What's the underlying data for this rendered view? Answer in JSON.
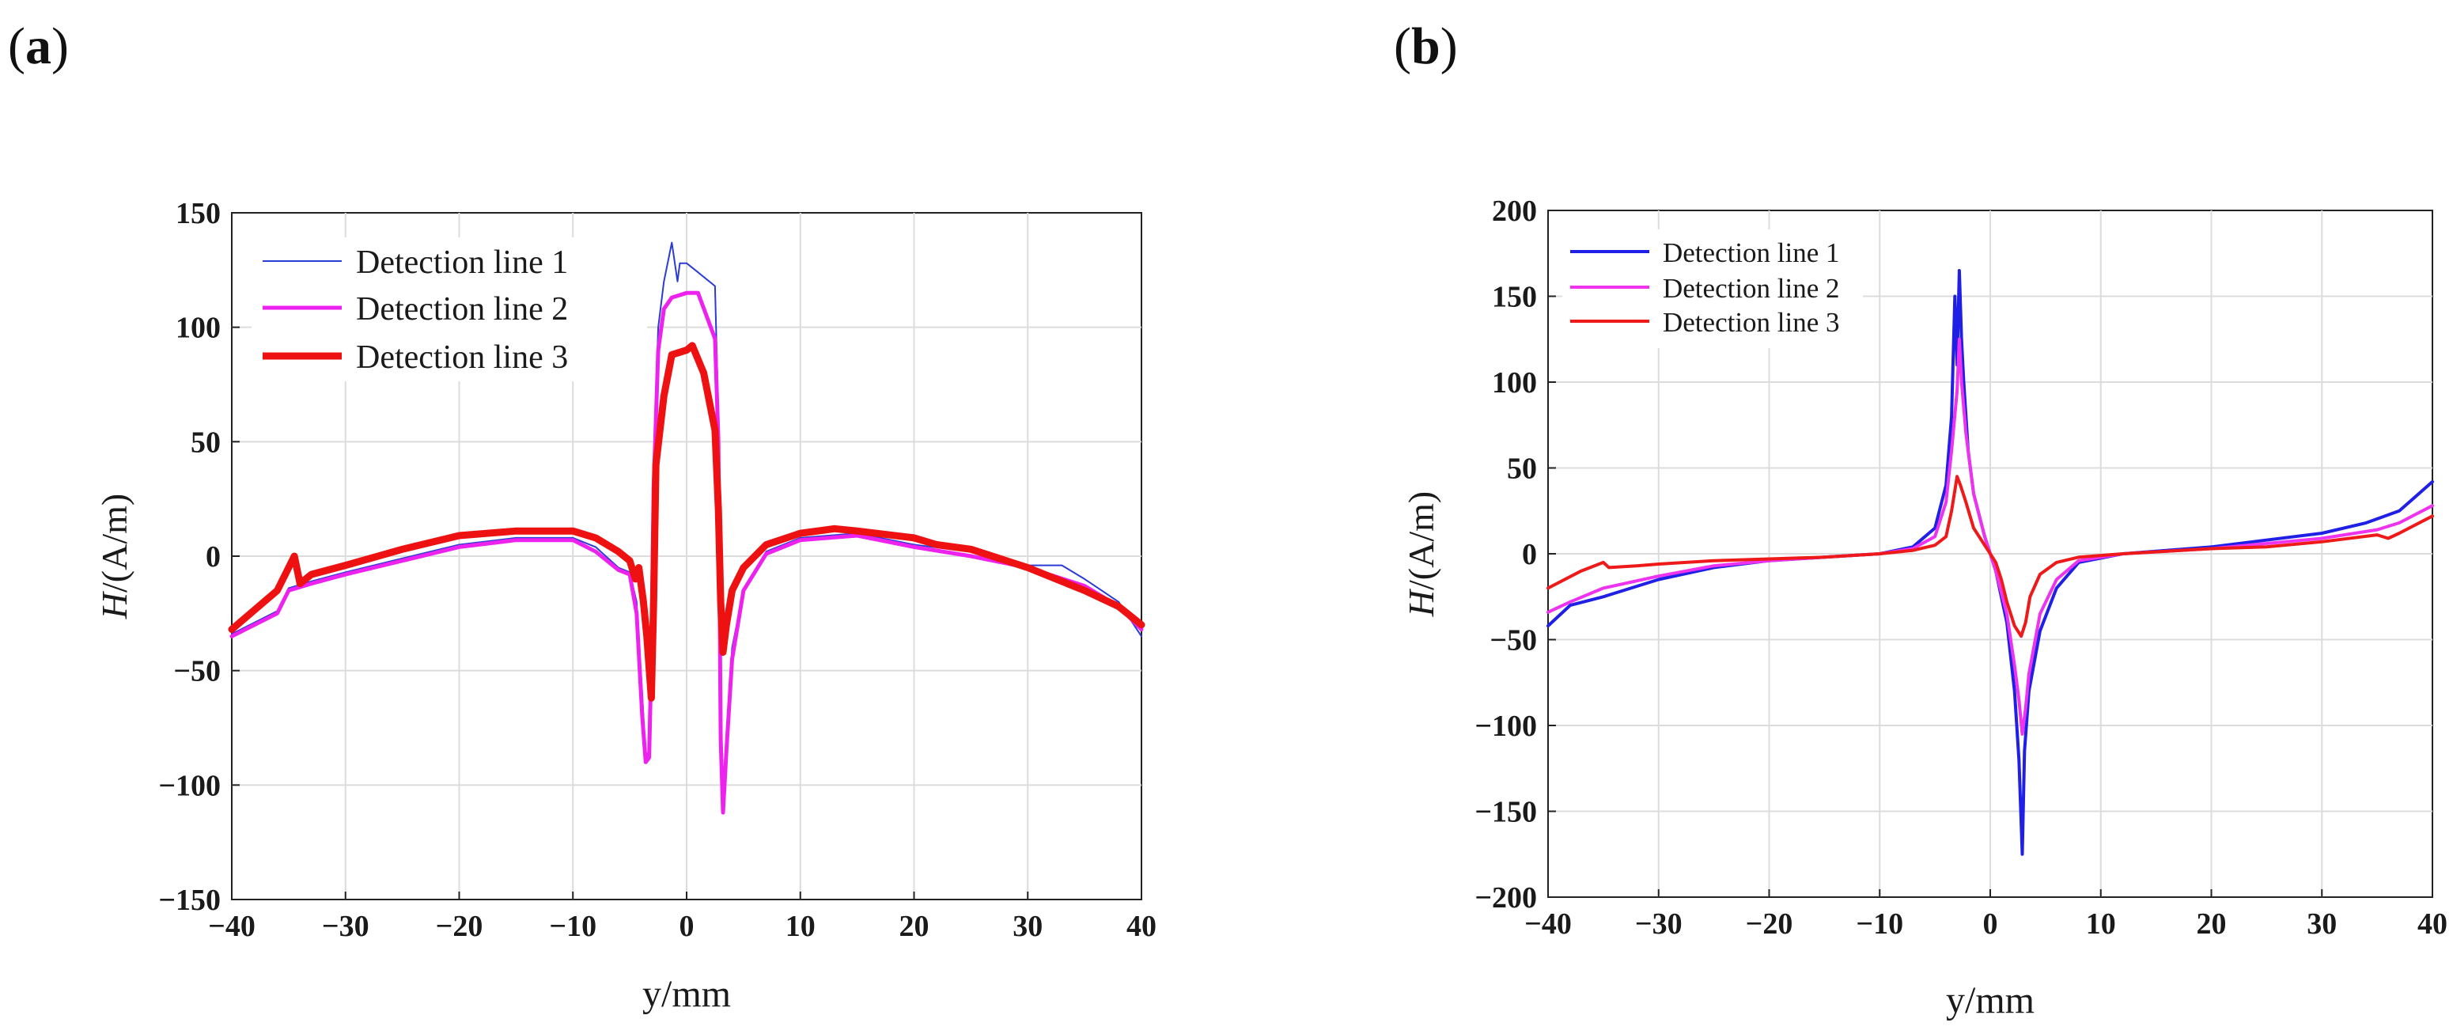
{
  "panels": {
    "a": {
      "label_open": "(",
      "label_letter": "a",
      "label_close": ")"
    },
    "b": {
      "label_open": "(",
      "label_letter": "b",
      "label_close": ")"
    }
  },
  "chart_data": [
    {
      "id": "a",
      "type": "line",
      "title": "",
      "xlabel": "y/mm",
      "ylabel_italic": "H",
      "ylabel_rest": "/(A/m)",
      "xlim": [
        -40,
        40
      ],
      "ylim": [
        -150,
        150
      ],
      "xticks": [
        -40,
        -30,
        -20,
        -10,
        0,
        10,
        20,
        30,
        40
      ],
      "yticks": [
        -150,
        -100,
        -50,
        0,
        50,
        100,
        150
      ],
      "xtick_labels": [
        "−40",
        "−30",
        "−20",
        "−10",
        "0",
        "10",
        "20",
        "30",
        "40"
      ],
      "ytick_labels": [
        "−150",
        "−100",
        "−50",
        "0",
        "50",
        "100",
        "150"
      ],
      "grid": true,
      "legend_position": "top-left",
      "series": [
        {
          "name": "Detection line 1",
          "color": "#2b3bd6",
          "width": 2,
          "points": [
            [
              -40,
              -34
            ],
            [
              -36,
              -24
            ],
            [
              -35,
              -14
            ],
            [
              -33,
              -11
            ],
            [
              -30,
              -7
            ],
            [
              -25,
              -1
            ],
            [
              -20,
              5
            ],
            [
              -15,
              8
            ],
            [
              -10,
              8
            ],
            [
              -8,
              4
            ],
            [
              -6,
              -5
            ],
            [
              -5,
              -7
            ],
            [
              -4.4,
              -20
            ],
            [
              -3.9,
              -60
            ],
            [
              -3.6,
              -88
            ],
            [
              -3.3,
              -85
            ],
            [
              -3.1,
              -40
            ],
            [
              -2.9,
              40
            ],
            [
              -2.5,
              100
            ],
            [
              -2,
              120
            ],
            [
              -1.3,
              137
            ],
            [
              -0.8,
              120
            ],
            [
              -0.6,
              128
            ],
            [
              0,
              128
            ],
            [
              1,
              124
            ],
            [
              2.5,
              118
            ],
            [
              2.8,
              60
            ],
            [
              3.0,
              -80
            ],
            [
              3.2,
              -110
            ],
            [
              3.5,
              -85
            ],
            [
              4,
              -40
            ],
            [
              5,
              -15
            ],
            [
              7,
              2
            ],
            [
              10,
              8
            ],
            [
              15,
              10
            ],
            [
              20,
              5
            ],
            [
              25,
              2
            ],
            [
              30,
              -4
            ],
            [
              33,
              -4
            ],
            [
              35,
              -10
            ],
            [
              38,
              -20
            ],
            [
              40,
              -35
            ]
          ]
        },
        {
          "name": "Detection line 2",
          "color": "#ee22ee",
          "width": 5,
          "points": [
            [
              -40,
              -35
            ],
            [
              -36,
              -25
            ],
            [
              -35,
              -15
            ],
            [
              -33,
              -12
            ],
            [
              -30,
              -8
            ],
            [
              -25,
              -2
            ],
            [
              -20,
              4
            ],
            [
              -15,
              7
            ],
            [
              -10,
              7
            ],
            [
              -8,
              2
            ],
            [
              -6,
              -6
            ],
            [
              -5,
              -8
            ],
            [
              -4.4,
              -25
            ],
            [
              -3.9,
              -70
            ],
            [
              -3.6,
              -90
            ],
            [
              -3.3,
              -88
            ],
            [
              -3.1,
              -45
            ],
            [
              -2.9,
              30
            ],
            [
              -2.5,
              90
            ],
            [
              -2,
              108
            ],
            [
              -1.3,
              113
            ],
            [
              0,
              115
            ],
            [
              1,
              115
            ],
            [
              2.5,
              95
            ],
            [
              2.8,
              50
            ],
            [
              3.0,
              -80
            ],
            [
              3.2,
              -112
            ],
            [
              3.5,
              -85
            ],
            [
              4,
              -45
            ],
            [
              5,
              -15
            ],
            [
              7,
              1
            ],
            [
              10,
              7
            ],
            [
              15,
              9
            ],
            [
              20,
              4
            ],
            [
              25,
              0
            ],
            [
              30,
              -5
            ],
            [
              35,
              -13
            ],
            [
              38,
              -22
            ],
            [
              40,
              -32
            ]
          ]
        },
        {
          "name": "Detection line 3",
          "color": "#ee1111",
          "width": 9,
          "points": [
            [
              -40,
              -32
            ],
            [
              -36,
              -15
            ],
            [
              -35,
              -5
            ],
            [
              -34.5,
              0
            ],
            [
              -34,
              -12
            ],
            [
              -33,
              -8
            ],
            [
              -30,
              -4
            ],
            [
              -25,
              3
            ],
            [
              -20,
              9
            ],
            [
              -15,
              11
            ],
            [
              -10,
              11
            ],
            [
              -8,
              8
            ],
            [
              -6,
              2
            ],
            [
              -5,
              -2
            ],
            [
              -4.5,
              -10
            ],
            [
              -4.2,
              -5
            ],
            [
              -3.8,
              -20
            ],
            [
              -3.5,
              -35
            ],
            [
              -3.1,
              -62
            ],
            [
              -2.9,
              -20
            ],
            [
              -2.7,
              40
            ],
            [
              -2,
              70
            ],
            [
              -1.3,
              88
            ],
            [
              0,
              90
            ],
            [
              0.5,
              92
            ],
            [
              1.5,
              80
            ],
            [
              2.5,
              55
            ],
            [
              2.8,
              20
            ],
            [
              3.0,
              -20
            ],
            [
              3.2,
              -42
            ],
            [
              3.5,
              -30
            ],
            [
              4,
              -15
            ],
            [
              5,
              -5
            ],
            [
              7,
              5
            ],
            [
              10,
              10
            ],
            [
              13,
              12
            ],
            [
              15,
              11
            ],
            [
              20,
              8
            ],
            [
              22,
              5
            ],
            [
              25,
              3
            ],
            [
              30,
              -5
            ],
            [
              35,
              -15
            ],
            [
              38,
              -22
            ],
            [
              40,
              -30
            ]
          ]
        }
      ]
    },
    {
      "id": "b",
      "type": "line",
      "title": "",
      "xlabel": "y/mm",
      "ylabel_italic": "H",
      "ylabel_rest": "/(A/m)",
      "xlim": [
        -40,
        40
      ],
      "ylim": [
        -200,
        200
      ],
      "xticks": [
        -40,
        -30,
        -20,
        -10,
        0,
        10,
        20,
        30,
        40
      ],
      "yticks": [
        -200,
        -150,
        -100,
        -50,
        0,
        50,
        100,
        150,
        200
      ],
      "xtick_labels": [
        "−40",
        "−30",
        "−20",
        "−10",
        "0",
        "10",
        "20",
        "30",
        "40"
      ],
      "ytick_labels": [
        "−200",
        "−150",
        "−100",
        "−50",
        "0",
        "50",
        "100",
        "150",
        "200"
      ],
      "grid": true,
      "legend_position": "top-left",
      "series": [
        {
          "name": "Detection line 1",
          "color": "#1f1fe6",
          "width": 4,
          "points": [
            [
              -40,
              -42
            ],
            [
              -38,
              -30
            ],
            [
              -35,
              -25
            ],
            [
              -30,
              -15
            ],
            [
              -25,
              -8
            ],
            [
              -20,
              -4
            ],
            [
              -15,
              -2
            ],
            [
              -10,
              0
            ],
            [
              -7,
              4
            ],
            [
              -5,
              15
            ],
            [
              -4,
              40
            ],
            [
              -3.5,
              80
            ],
            [
              -3.2,
              150
            ],
            [
              -3.0,
              110
            ],
            [
              -2.8,
              165
            ],
            [
              -2.6,
              125
            ],
            [
              -2.4,
              100
            ],
            [
              -2.0,
              60
            ],
            [
              -1.5,
              35
            ],
            [
              -0.5,
              10
            ],
            [
              0,
              0
            ],
            [
              0.5,
              -10
            ],
            [
              1.5,
              -40
            ],
            [
              2.2,
              -80
            ],
            [
              2.6,
              -120
            ],
            [
              2.9,
              -175
            ],
            [
              3.1,
              -115
            ],
            [
              3.5,
              -80
            ],
            [
              4.5,
              -45
            ],
            [
              6,
              -20
            ],
            [
              8,
              -5
            ],
            [
              12,
              0
            ],
            [
              20,
              4
            ],
            [
              30,
              12
            ],
            [
              34,
              18
            ],
            [
              37,
              25
            ],
            [
              40,
              42
            ]
          ]
        },
        {
          "name": "Detection line 2",
          "color": "#ee33ee",
          "width": 4,
          "points": [
            [
              -40,
              -34
            ],
            [
              -38,
              -28
            ],
            [
              -35,
              -20
            ],
            [
              -30,
              -13
            ],
            [
              -25,
              -7
            ],
            [
              -20,
              -4
            ],
            [
              -15,
              -2
            ],
            [
              -10,
              0
            ],
            [
              -7,
              3
            ],
            [
              -5,
              10
            ],
            [
              -4,
              30
            ],
            [
              -3.5,
              60
            ],
            [
              -3.0,
              95
            ],
            [
              -2.8,
              125
            ],
            [
              -2.6,
              100
            ],
            [
              -2.2,
              70
            ],
            [
              -1.5,
              35
            ],
            [
              -0.5,
              10
            ],
            [
              0,
              0
            ],
            [
              0.5,
              -10
            ],
            [
              1.5,
              -35
            ],
            [
              2.2,
              -65
            ],
            [
              2.6,
              -85
            ],
            [
              2.9,
              -105
            ],
            [
              3.2,
              -90
            ],
            [
              3.5,
              -70
            ],
            [
              4.5,
              -35
            ],
            [
              6,
              -15
            ],
            [
              8,
              -4
            ],
            [
              12,
              0
            ],
            [
              20,
              3
            ],
            [
              30,
              9
            ],
            [
              35,
              14
            ],
            [
              37,
              18
            ],
            [
              40,
              28
            ]
          ]
        },
        {
          "name": "Detection line 3",
          "color": "#ee1a1a",
          "width": 4,
          "points": [
            [
              -40,
              -20
            ],
            [
              -37,
              -10
            ],
            [
              -35,
              -5
            ],
            [
              -34.5,
              -8
            ],
            [
              -32,
              -7
            ],
            [
              -30,
              -6
            ],
            [
              -25,
              -4
            ],
            [
              -20,
              -3
            ],
            [
              -15,
              -2
            ],
            [
              -10,
              0
            ],
            [
              -7,
              2
            ],
            [
              -5,
              5
            ],
            [
              -4,
              10
            ],
            [
              -3.5,
              25
            ],
            [
              -3,
              45
            ],
            [
              -2.7,
              40
            ],
            [
              -2.2,
              30
            ],
            [
              -1.5,
              15
            ],
            [
              -0.5,
              5
            ],
            [
              0,
              0
            ],
            [
              0.5,
              -5
            ],
            [
              1,
              -15
            ],
            [
              1.5,
              -28
            ],
            [
              2.2,
              -42
            ],
            [
              2.8,
              -48
            ],
            [
              3.2,
              -40
            ],
            [
              3.6,
              -25
            ],
            [
              4.5,
              -12
            ],
            [
              6,
              -5
            ],
            [
              8,
              -2
            ],
            [
              12,
              0
            ],
            [
              20,
              3
            ],
            [
              25,
              4
            ],
            [
              30,
              7
            ],
            [
              35,
              11
            ],
            [
              36,
              9
            ],
            [
              37,
              12
            ],
            [
              40,
              22
            ]
          ]
        }
      ]
    }
  ]
}
